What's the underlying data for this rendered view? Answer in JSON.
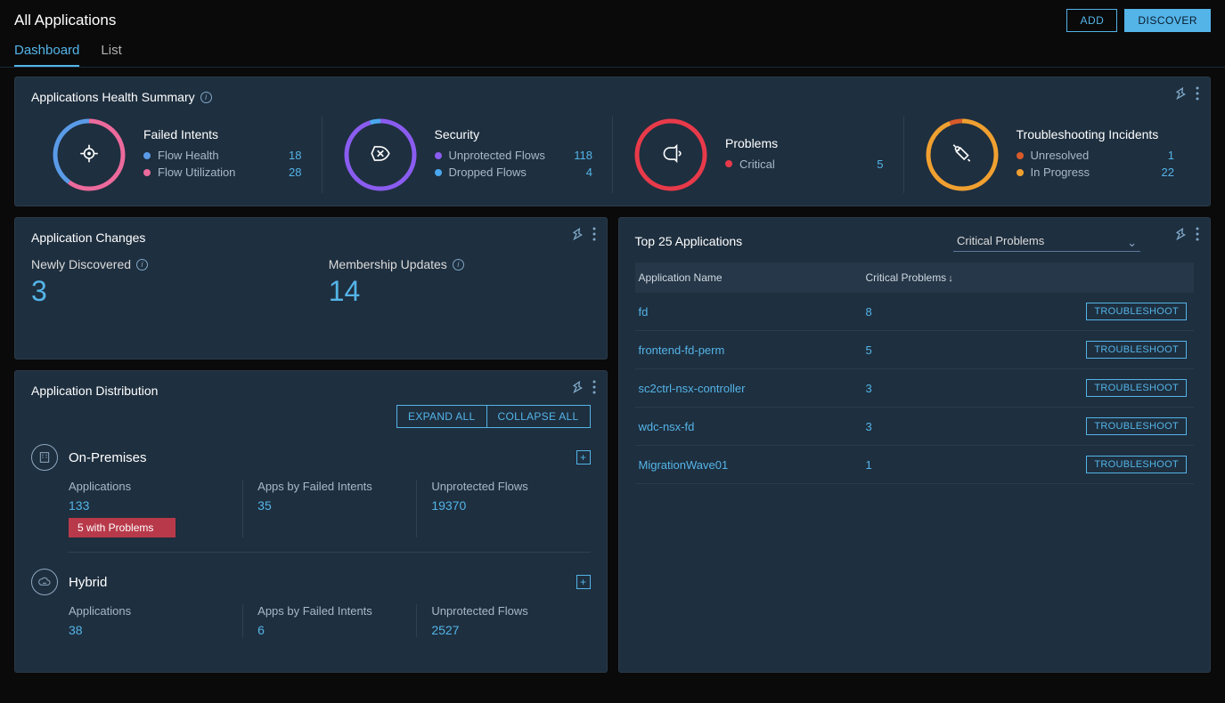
{
  "header": {
    "title": "All Applications",
    "add_label": "ADD",
    "discover_label": "DISCOVER"
  },
  "tabs": {
    "dashboard": "Dashboard",
    "list": "List"
  },
  "health": {
    "title": "Applications Health Summary",
    "cards": [
      {
        "title": "Failed Intents",
        "ring_colors": [
          "#ec6a9c",
          "#5a9be8"
        ],
        "ring_fractions": [
          0.6,
          0.4
        ],
        "icon": "target",
        "rows": [
          {
            "dot": "#5a9be8",
            "label": "Flow Health",
            "value": "18"
          },
          {
            "dot": "#ec6a9c",
            "label": "Flow Utilization",
            "value": "28"
          }
        ]
      },
      {
        "title": "Security",
        "ring_colors": [
          "#8a5cf0",
          "#4aa8f0"
        ],
        "ring_fractions": [
          0.95,
          0.05
        ],
        "icon": "shield",
        "rows": [
          {
            "dot": "#8a5cf0",
            "label": "Unprotected Flows",
            "value": "118"
          },
          {
            "dot": "#4aa8f0",
            "label": "Dropped Flows",
            "value": "4"
          }
        ]
      },
      {
        "title": "Problems",
        "ring_colors": [
          "#e83a4a"
        ],
        "ring_fractions": [
          1.0
        ],
        "icon": "bell",
        "rows": [
          {
            "dot": "#e83a4a",
            "label": "Critical",
            "value": "5"
          }
        ]
      },
      {
        "title": "Troubleshooting Incidents",
        "ring_colors": [
          "#f0a030",
          "#d85a2a"
        ],
        "ring_fractions": [
          0.94,
          0.06
        ],
        "icon": "tools",
        "rows": [
          {
            "dot": "#d85a2a",
            "label": "Unresolved",
            "value": "1"
          },
          {
            "dot": "#f0a030",
            "label": "In Progress",
            "value": "22"
          }
        ]
      }
    ]
  },
  "changes": {
    "title": "Application Changes",
    "newly_label": "Newly Discovered",
    "newly_value": "3",
    "membership_label": "Membership Updates",
    "membership_value": "14"
  },
  "distribution": {
    "title": "Application Distribution",
    "expand_all": "EXPAND ALL",
    "collapse_all": "COLLAPSE ALL",
    "col_labels": {
      "apps": "Applications",
      "failed": "Apps by Failed Intents",
      "unprotected": "Unprotected Flows"
    },
    "sections": [
      {
        "name": "On-Premises",
        "apps": "133",
        "problem_badge": "5 with Problems",
        "failed": "35",
        "unprotected": "19370"
      },
      {
        "name": "Hybrid",
        "apps": "38",
        "problem_badge": "",
        "failed": "6",
        "unprotected": "2527"
      }
    ]
  },
  "top": {
    "title": "Top 25 Applications",
    "selector_value": "Critical Problems",
    "col_app": "Application Name",
    "col_problems": "Critical Problems",
    "troubleshoot_label": "TROUBLESHOOT",
    "rows": [
      {
        "app": "fd",
        "count": "8"
      },
      {
        "app": "frontend-fd-perm",
        "count": "5"
      },
      {
        "app": "sc2ctrl-nsx-controller",
        "count": "3"
      },
      {
        "app": "wdc-nsx-fd",
        "count": "3"
      },
      {
        "app": "MigrationWave01",
        "count": "1"
      }
    ]
  },
  "colors": {
    "panel_bg": "#1e2f3f",
    "link": "#54b4e8",
    "badge_bg": "#b83a4a"
  }
}
